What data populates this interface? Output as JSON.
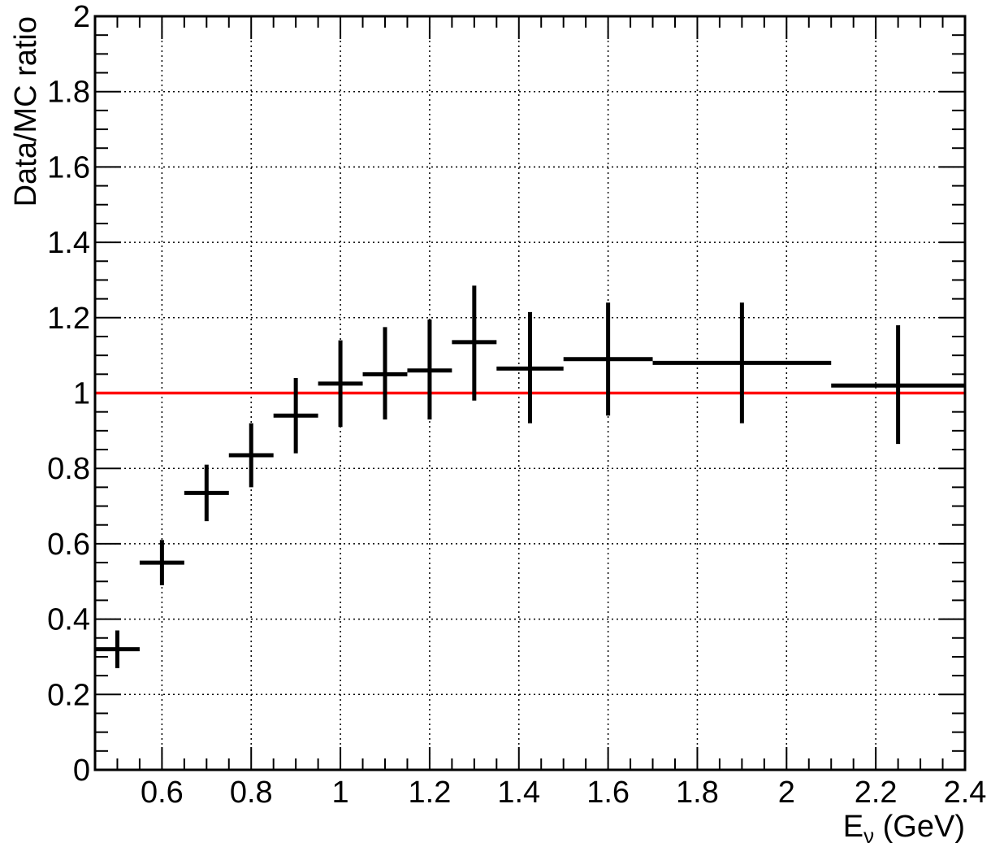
{
  "chart_data": {
    "type": "scatter",
    "xlabel": "E",
    "xlabel_subscript": "ν",
    "xlabel_unit": " (GeV)",
    "ylabel": "Data/MC ratio",
    "xlim": [
      0.45,
      2.4
    ],
    "ylim": [
      0,
      2
    ],
    "grid": true,
    "x_ticks": [
      {
        "value": 0.6,
        "label": "0.6"
      },
      {
        "value": 0.8,
        "label": "0.8"
      },
      {
        "value": 1.0,
        "label": "1"
      },
      {
        "value": 1.2,
        "label": "1.2"
      },
      {
        "value": 1.4,
        "label": "1.4"
      },
      {
        "value": 1.6,
        "label": "1.6"
      },
      {
        "value": 1.8,
        "label": "1.8"
      },
      {
        "value": 2.0,
        "label": "2"
      },
      {
        "value": 2.2,
        "label": "2.2"
      },
      {
        "value": 2.4,
        "label": "2.4"
      }
    ],
    "y_ticks": [
      {
        "value": 0,
        "label": "0"
      },
      {
        "value": 0.2,
        "label": "0.2"
      },
      {
        "value": 0.4,
        "label": "0.4"
      },
      {
        "value": 0.6,
        "label": "0.6"
      },
      {
        "value": 0.8,
        "label": "0.8"
      },
      {
        "value": 1.0,
        "label": "1"
      },
      {
        "value": 1.2,
        "label": "1.2"
      },
      {
        "value": 1.4,
        "label": "1.4"
      },
      {
        "value": 1.6,
        "label": "1.6"
      },
      {
        "value": 1.8,
        "label": "1.8"
      },
      {
        "value": 2.0,
        "label": "2"
      }
    ],
    "reference_line": {
      "y": 1.0,
      "color": "#ff0000"
    },
    "series": [
      {
        "color": "#000000",
        "points": [
          {
            "x": 0.5,
            "xlo": 0.45,
            "xhi": 0.55,
            "y": 0.32,
            "ylo": 0.27,
            "yhi": 0.37
          },
          {
            "x": 0.6,
            "xlo": 0.55,
            "xhi": 0.65,
            "y": 0.55,
            "ylo": 0.49,
            "yhi": 0.61
          },
          {
            "x": 0.7,
            "xlo": 0.65,
            "xhi": 0.75,
            "y": 0.735,
            "ylo": 0.66,
            "yhi": 0.81
          },
          {
            "x": 0.8,
            "xlo": 0.75,
            "xhi": 0.85,
            "y": 0.835,
            "ylo": 0.75,
            "yhi": 0.92
          },
          {
            "x": 0.9,
            "xlo": 0.85,
            "xhi": 0.95,
            "y": 0.94,
            "ylo": 0.84,
            "yhi": 1.04
          },
          {
            "x": 1.0,
            "xlo": 0.95,
            "xhi": 1.05,
            "y": 1.025,
            "ylo": 0.91,
            "yhi": 1.14
          },
          {
            "x": 1.1,
            "xlo": 1.05,
            "xhi": 1.15,
            "y": 1.05,
            "ylo": 0.93,
            "yhi": 1.175
          },
          {
            "x": 1.2,
            "xlo": 1.15,
            "xhi": 1.25,
            "y": 1.06,
            "ylo": 0.93,
            "yhi": 1.195
          },
          {
            "x": 1.3,
            "xlo": 1.25,
            "xhi": 1.35,
            "y": 1.135,
            "ylo": 0.98,
            "yhi": 1.285
          },
          {
            "x": 1.425,
            "xlo": 1.35,
            "xhi": 1.5,
            "y": 1.065,
            "ylo": 0.92,
            "yhi": 1.215
          },
          {
            "x": 1.6,
            "xlo": 1.5,
            "xhi": 1.7,
            "y": 1.09,
            "ylo": 0.94,
            "yhi": 1.24
          },
          {
            "x": 1.9,
            "xlo": 1.7,
            "xhi": 2.1,
            "y": 1.08,
            "ylo": 0.92,
            "yhi": 1.24
          },
          {
            "x": 2.25,
            "xlo": 2.1,
            "xhi": 2.4,
            "y": 1.02,
            "ylo": 0.865,
            "yhi": 1.18
          }
        ]
      }
    ]
  }
}
